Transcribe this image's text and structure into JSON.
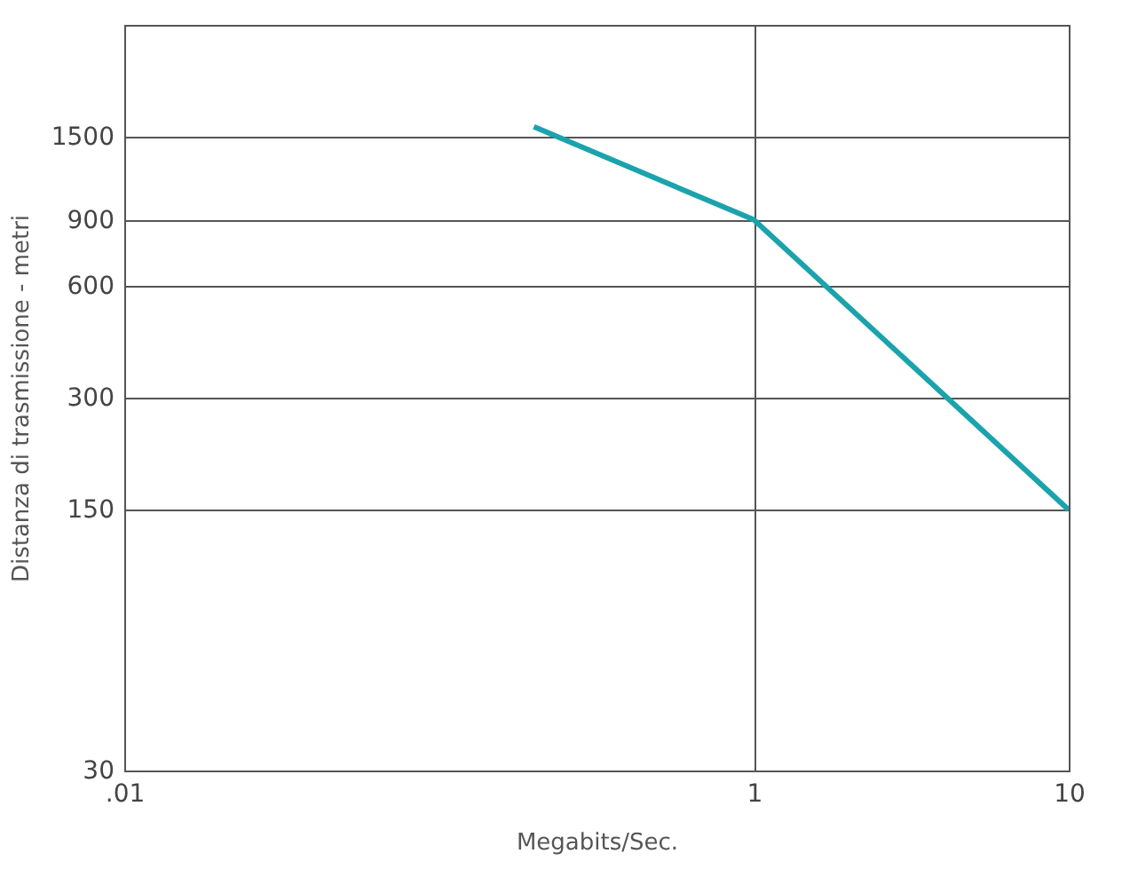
{
  "chart_data": {
    "type": "line",
    "xlabel": "Megabits/Sec.",
    "ylabel": "Distanza di trasmissione - metri",
    "x": [
      0.2,
      1,
      10
    ],
    "series": [
      {
        "color": "#1ba3ad",
        "values": [
          1600,
          900,
          150
        ]
      }
    ],
    "log": "xy",
    "xlim": [
      0.01,
      10
    ],
    "xticks": [
      {
        "value": 0.01,
        "label": ".01"
      },
      1,
      10
    ],
    "ylim": [
      30,
      3000
    ],
    "yticks": [
      30,
      150,
      300,
      600,
      900,
      1500
    ],
    "grid": true,
    "line_style": "solid",
    "marker": "none"
  }
}
